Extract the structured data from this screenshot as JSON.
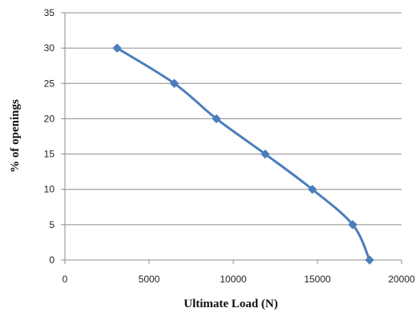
{
  "chart_data": {
    "type": "line",
    "title": "",
    "xlabel": "Ultimate Load (N)",
    "ylabel": "% of openings",
    "xlim": [
      0,
      20000
    ],
    "ylim": [
      0,
      35
    ],
    "xticks": [
      "0",
      "5000",
      "10000",
      "15000",
      "20000"
    ],
    "yticks": [
      "0",
      "5",
      "10",
      "15",
      "20",
      "25",
      "30",
      "35"
    ],
    "grid": {
      "horizontal": true,
      "vertical": false
    },
    "legend": "none",
    "smooth": true,
    "series": [
      {
        "color": "#4a7ebb",
        "marker": "diamond",
        "points": [
          {
            "x": 3100,
            "y": 30
          },
          {
            "x": 6500,
            "y": 25
          },
          {
            "x": 9000,
            "y": 20
          },
          {
            "x": 11900,
            "y": 15
          },
          {
            "x": 14700,
            "y": 10
          },
          {
            "x": 17100,
            "y": 5
          },
          {
            "x": 18100,
            "y": 0
          }
        ]
      }
    ]
  }
}
